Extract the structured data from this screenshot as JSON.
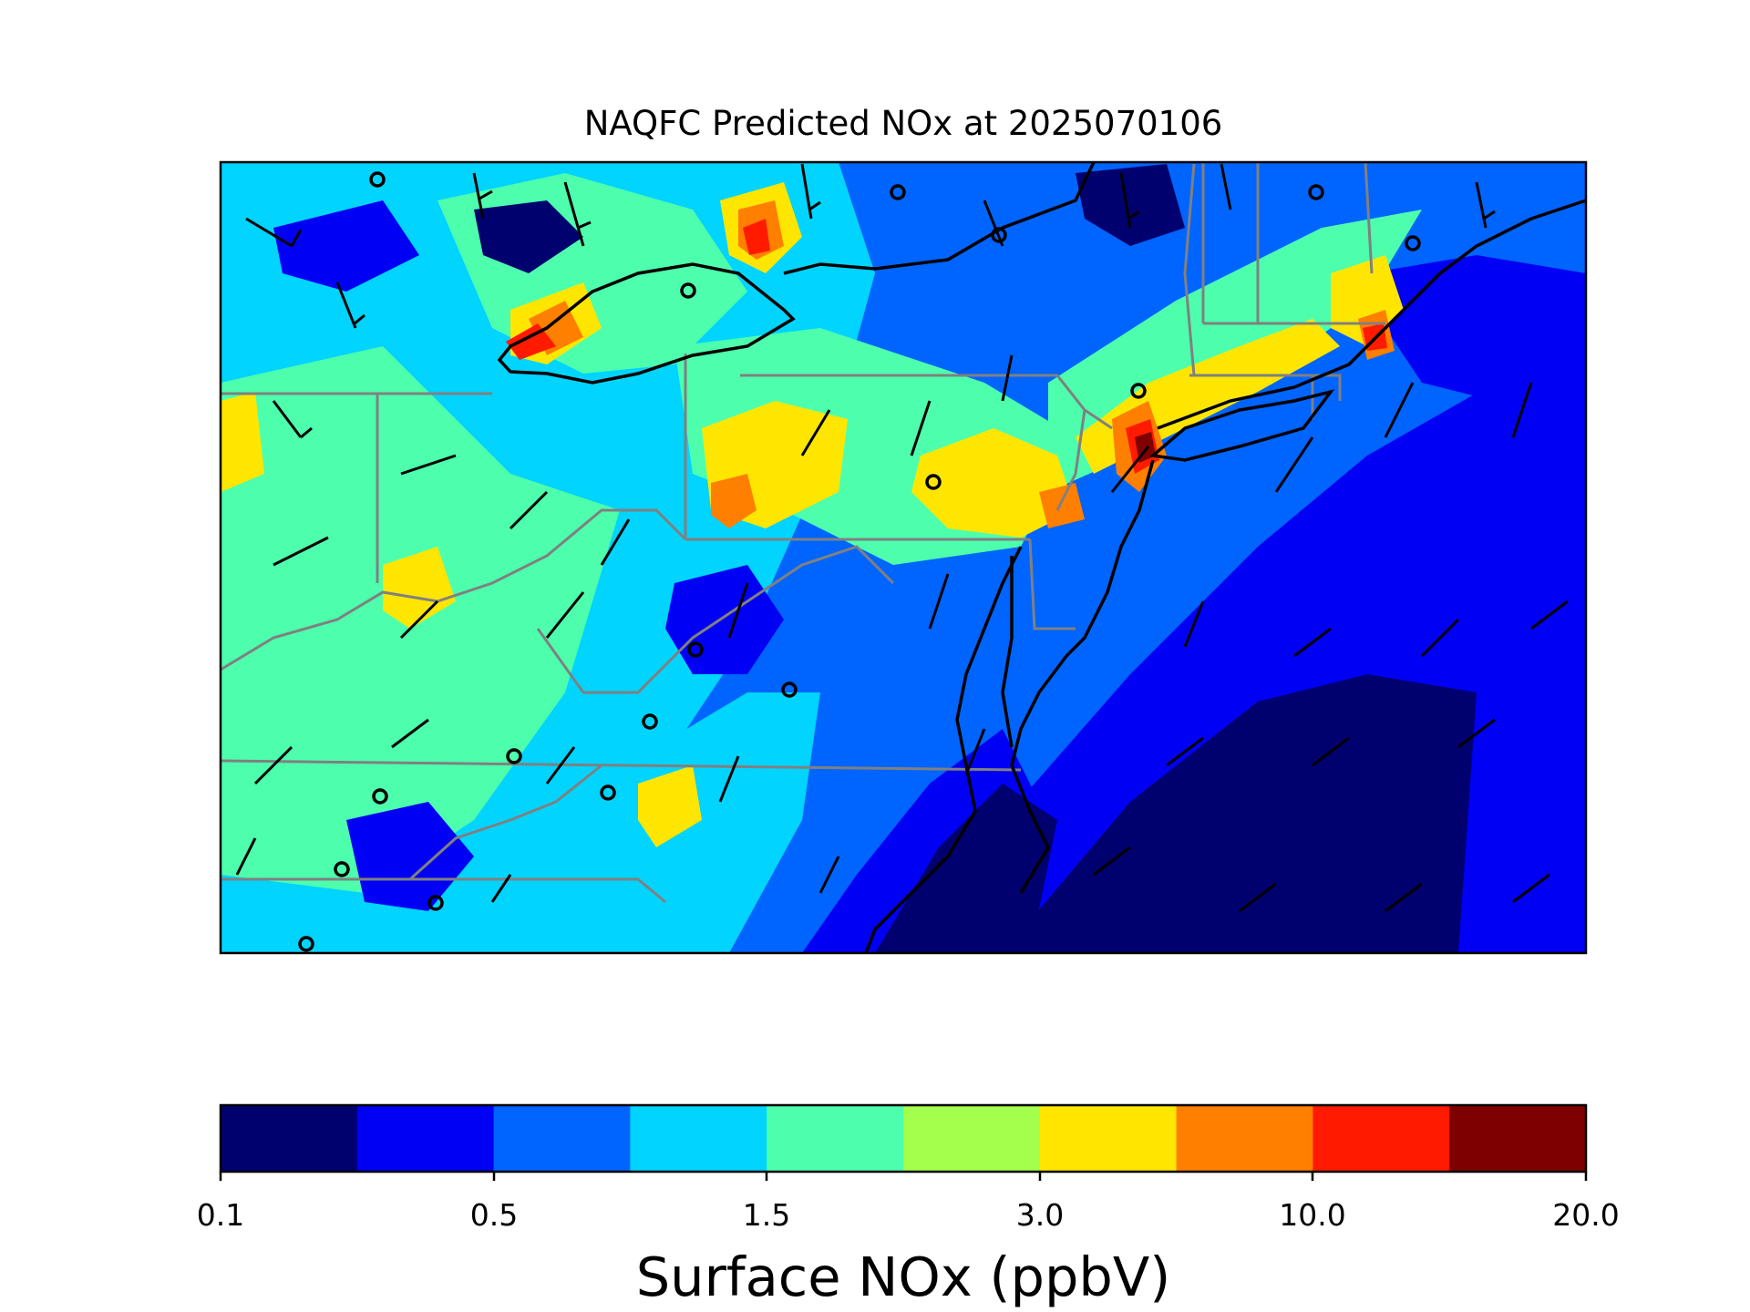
{
  "title": "NAQFC Predicted NOx at 2025070106",
  "colorbar": {
    "label": "Surface NOx (ppbV)",
    "colors": [
      "#00006f",
      "#0000f5",
      "#0064ff",
      "#00d4ff",
      "#4dffad",
      "#a3ff4c",
      "#ffe600",
      "#ff7f00",
      "#ff1a00",
      "#7f0000"
    ],
    "tick_labels": [
      "0.1",
      "0.5",
      "1.5",
      "3.0",
      "10.0",
      "20.0"
    ]
  },
  "chart_data": {
    "type": "heatmap",
    "title": "NAQFC Predicted NOx at 2025070106",
    "variable": "Surface NOx",
    "units": "ppbV",
    "levels": [
      0.1,
      0.2,
      0.5,
      1.0,
      1.5,
      2.0,
      3.0,
      5.0,
      10.0,
      15.0,
      20.0
    ],
    "colorbar_tick_values": [
      0.1,
      0.5,
      1.5,
      3.0,
      10.0,
      20.0
    ],
    "overlays": [
      "state boundaries",
      "coastlines",
      "wind barbs",
      "monitoring station markers"
    ]
  }
}
